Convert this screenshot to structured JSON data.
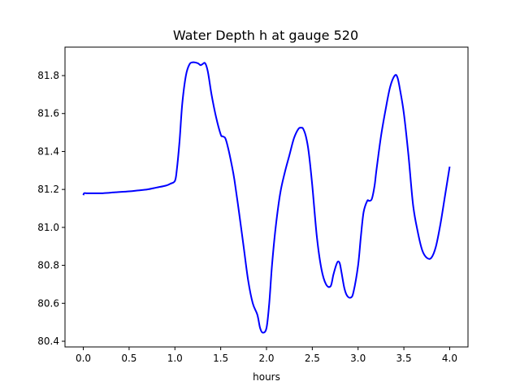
{
  "chart_data": {
    "type": "line",
    "title": "Water Depth h at gauge 520",
    "xlabel": "hours",
    "ylabel": "",
    "xlim": [
      -0.2,
      4.2
    ],
    "ylim": [
      80.37,
      81.95
    ],
    "xticks": [
      0.0,
      0.5,
      1.0,
      1.5,
      2.0,
      2.5,
      3.0,
      3.5,
      4.0
    ],
    "xtick_labels": [
      "0.0",
      "0.5",
      "1.0",
      "1.5",
      "2.0",
      "2.5",
      "3.0",
      "3.5",
      "4.0"
    ],
    "yticks": [
      80.4,
      80.6,
      80.8,
      81.0,
      81.2,
      81.4,
      81.6,
      81.8
    ],
    "ytick_labels": [
      "80.4",
      "80.6",
      "80.8",
      "81.0",
      "81.2",
      "81.4",
      "81.6",
      "81.8"
    ],
    "grid": false,
    "series": [
      {
        "color": "#0000ff",
        "x": [
          0.0,
          0.01,
          0.05,
          0.2,
          0.35,
          0.5,
          0.6,
          0.7,
          0.8,
          0.9,
          0.95,
          1.0,
          1.02,
          1.05,
          1.08,
          1.12,
          1.16,
          1.2,
          1.25,
          1.28,
          1.3,
          1.33,
          1.36,
          1.4,
          1.45,
          1.5,
          1.52,
          1.55,
          1.58,
          1.62,
          1.65,
          1.7,
          1.75,
          1.8,
          1.85,
          1.9,
          1.93,
          1.96,
          2.0,
          2.03,
          2.06,
          2.1,
          2.15,
          2.2,
          2.25,
          2.3,
          2.35,
          2.38,
          2.4,
          2.43,
          2.46,
          2.5,
          2.55,
          2.6,
          2.65,
          2.7,
          2.73,
          2.76,
          2.78,
          2.8,
          2.82,
          2.85,
          2.88,
          2.92,
          2.95,
          3.0,
          3.03,
          3.06,
          3.1,
          3.12,
          3.15,
          3.18,
          3.2,
          3.25,
          3.3,
          3.35,
          3.4,
          3.43,
          3.46,
          3.5,
          3.55,
          3.6,
          3.65,
          3.7,
          3.75,
          3.8,
          3.85,
          3.9,
          3.95,
          4.0
        ],
        "y": [
          81.17,
          81.18,
          81.18,
          81.18,
          81.185,
          81.19,
          81.195,
          81.2,
          81.21,
          81.22,
          81.23,
          81.245,
          81.3,
          81.45,
          81.65,
          81.8,
          81.86,
          81.87,
          81.865,
          81.855,
          81.86,
          81.865,
          81.82,
          81.7,
          81.58,
          81.49,
          81.48,
          81.47,
          81.42,
          81.33,
          81.25,
          81.08,
          80.9,
          80.72,
          80.6,
          80.54,
          80.47,
          80.445,
          80.47,
          80.6,
          80.8,
          81.0,
          81.18,
          81.29,
          81.38,
          81.47,
          81.52,
          81.525,
          81.52,
          81.48,
          81.4,
          81.22,
          80.95,
          80.78,
          80.7,
          80.69,
          80.75,
          80.8,
          80.82,
          80.81,
          80.76,
          80.68,
          80.64,
          80.63,
          80.66,
          80.8,
          80.95,
          81.08,
          81.14,
          81.14,
          81.15,
          81.22,
          81.3,
          81.48,
          81.62,
          81.74,
          81.8,
          81.79,
          81.72,
          81.6,
          81.38,
          81.12,
          80.98,
          80.88,
          80.84,
          80.84,
          80.9,
          81.02,
          81.17,
          81.32
        ]
      }
    ]
  }
}
